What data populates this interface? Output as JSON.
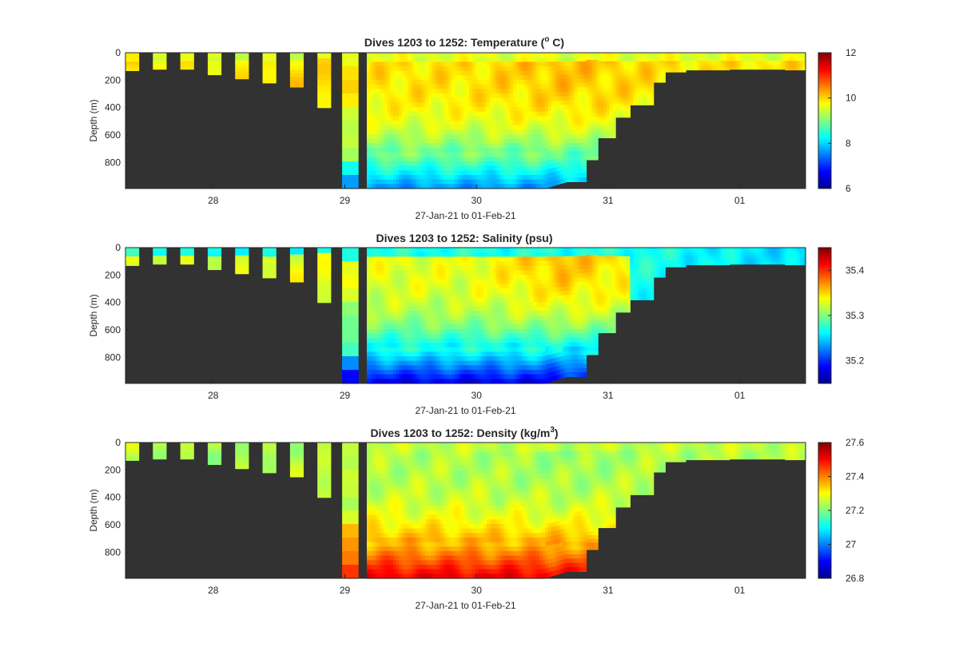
{
  "chart_data": [
    {
      "type": "heatmap",
      "title_prefix": "Dives 1203 to 1252: Temperature (",
      "title_sup": "o",
      "title_suffix": " C)",
      "xlabel": "27-Jan-21 to 01-Feb-21",
      "ylabel": "Depth (m)",
      "xlim": [
        "2021-01-27T08:00",
        "2021-02-01T12:00"
      ],
      "ylim": [
        990,
        0
      ],
      "y_reversed": true,
      "x_ticks": [
        "28",
        "29",
        "30",
        "31",
        "01"
      ],
      "y_ticks": [
        "0",
        "200",
        "400",
        "600",
        "800"
      ],
      "colorbar": {
        "min": 6,
        "max": 12,
        "ticks": [
          "6",
          "8",
          "10",
          "12"
        ],
        "colormap": "jet"
      },
      "surface_value": 9.6,
      "deep_value": 7.6,
      "mid_value": 9.9,
      "core_value": 10.15,
      "data_area_color": "#323232"
    },
    {
      "type": "heatmap",
      "title_prefix": "Dives 1203 to 1252: Salinity (psu)",
      "title_sup": "",
      "title_suffix": "",
      "xlabel": "27-Jan-21 to 01-Feb-21",
      "ylabel": "Depth (m)",
      "xlim": [
        "2021-01-27T08:00",
        "2021-02-01T12:00"
      ],
      "ylim": [
        990,
        0
      ],
      "y_reversed": true,
      "x_ticks": [
        "28",
        "29",
        "30",
        "31",
        "01"
      ],
      "y_ticks": [
        "0",
        "200",
        "400",
        "600",
        "800"
      ],
      "colorbar": {
        "min": 35.15,
        "max": 35.45,
        "ticks": [
          "35.2",
          "35.3",
          "35.4"
        ],
        "colormap": "jet"
      },
      "surface_value": 35.27,
      "deep_value": 35.18,
      "mid_value": 35.33,
      "core_value": 35.36,
      "data_area_color": "#323232"
    },
    {
      "type": "heatmap",
      "title_prefix": "Dives 1203 to 1252: Density (kg/m",
      "title_sup": "3",
      "title_suffix": ")",
      "xlabel": "27-Jan-21 to 01-Feb-21",
      "ylabel": "Depth (m)",
      "xlim": [
        "2021-01-27T08:00",
        "2021-02-01T12:00"
      ],
      "ylim": [
        990,
        0
      ],
      "y_reversed": true,
      "x_ticks": [
        "28",
        "29",
        "30",
        "31",
        "01"
      ],
      "y_ticks": [
        "0",
        "200",
        "400",
        "600",
        "800"
      ],
      "colorbar": {
        "min": 26.8,
        "max": 27.6,
        "ticks": [
          "26.8",
          "27",
          "27.2",
          "27.4",
          "27.6"
        ],
        "colormap": "jet"
      },
      "surface_value": 27.25,
      "deep_value": 27.52,
      "mid_value": 27.24,
      "core_value": 27.22,
      "data_area_color": "#323232"
    }
  ]
}
